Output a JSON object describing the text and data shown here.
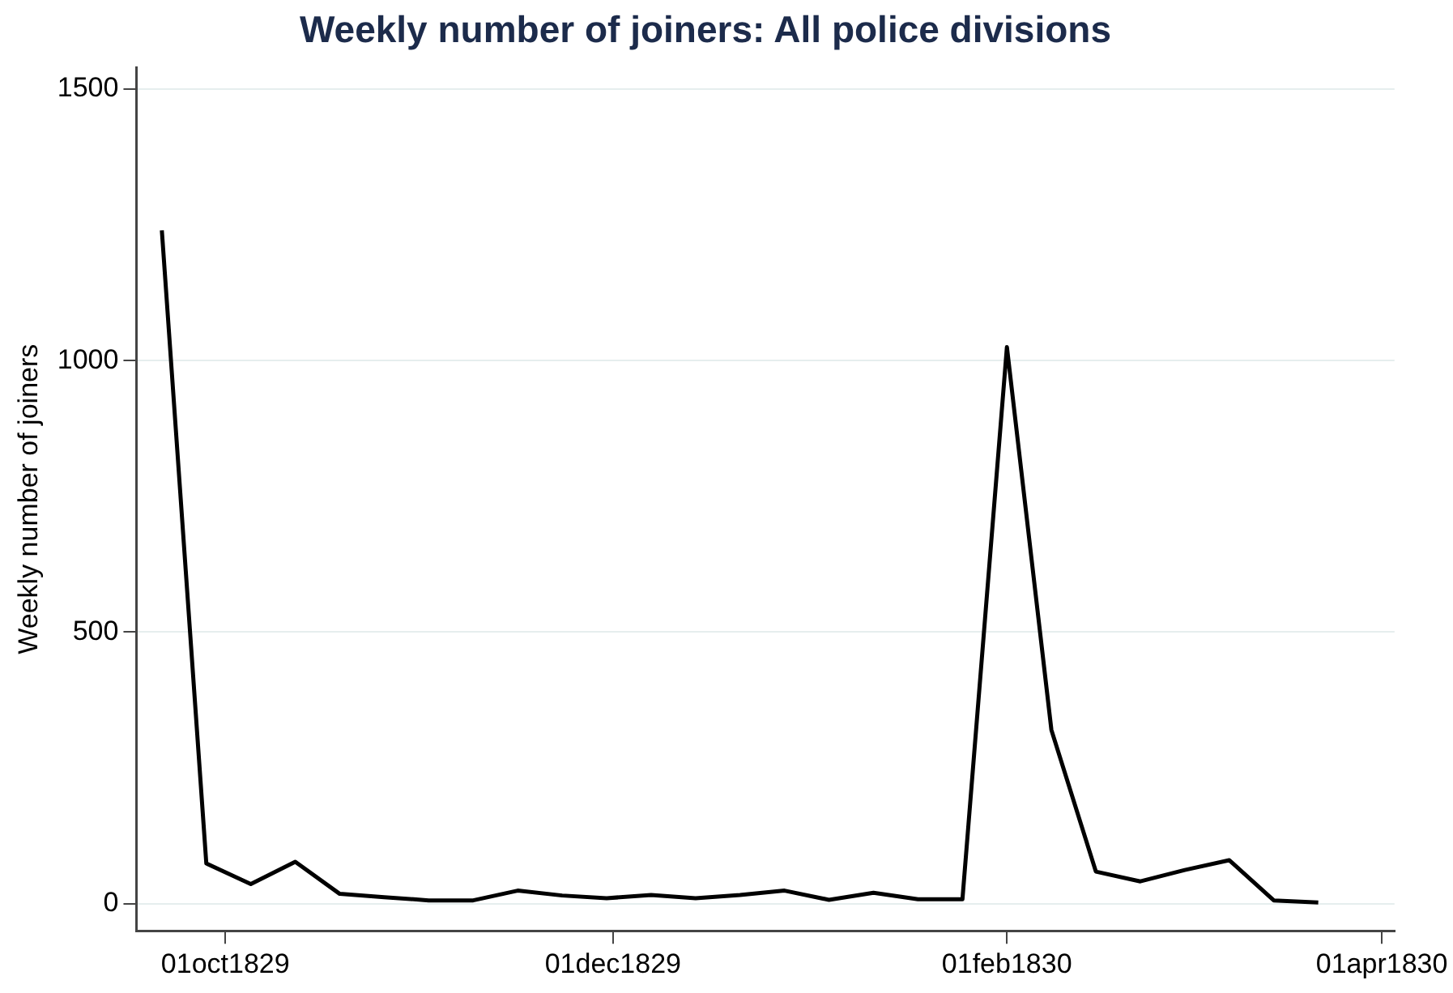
{
  "chart_data": {
    "type": "line",
    "title": "Weekly number of joiners: All police divisions",
    "ylabel": "Weekly number of joiners",
    "x": [
      "1829-09-21",
      "1829-09-28",
      "1829-10-05",
      "1829-10-12",
      "1829-10-19",
      "1829-10-26",
      "1829-11-02",
      "1829-11-09",
      "1829-11-16",
      "1829-11-23",
      "1829-11-30",
      "1829-12-07",
      "1829-12-14",
      "1829-12-21",
      "1829-12-28",
      "1830-01-04",
      "1830-01-11",
      "1830-01-18",
      "1830-01-25",
      "1830-02-01",
      "1830-02-08",
      "1830-02-15",
      "1830-02-22",
      "1830-03-01",
      "1830-03-08",
      "1830-03-15",
      "1830-03-22"
    ],
    "series": [
      {
        "color": "#000000",
        "values": [
          1240,
          74,
          36,
          77,
          18,
          12,
          6,
          6,
          24,
          15,
          10,
          16,
          10,
          16,
          24,
          7,
          20,
          8,
          8,
          1025,
          320,
          59,
          41,
          62,
          80,
          6,
          2
        ]
      }
    ],
    "xlim": [
      "1829-09-17",
      "1830-04-03"
    ],
    "xticks": [
      {
        "value": "1829-10-01",
        "label": "01oct1829"
      },
      {
        "value": "1829-12-01",
        "label": "01dec1829"
      },
      {
        "value": "1830-02-01",
        "label": "01feb1830"
      },
      {
        "value": "1830-04-01",
        "label": "01apr1830"
      }
    ],
    "ylim": [
      -50,
      1540
    ],
    "yticks": [
      0,
      500,
      1000,
      1500
    ],
    "grid": "y",
    "legend": false,
    "marker": "none",
    "line_style": "solid"
  }
}
